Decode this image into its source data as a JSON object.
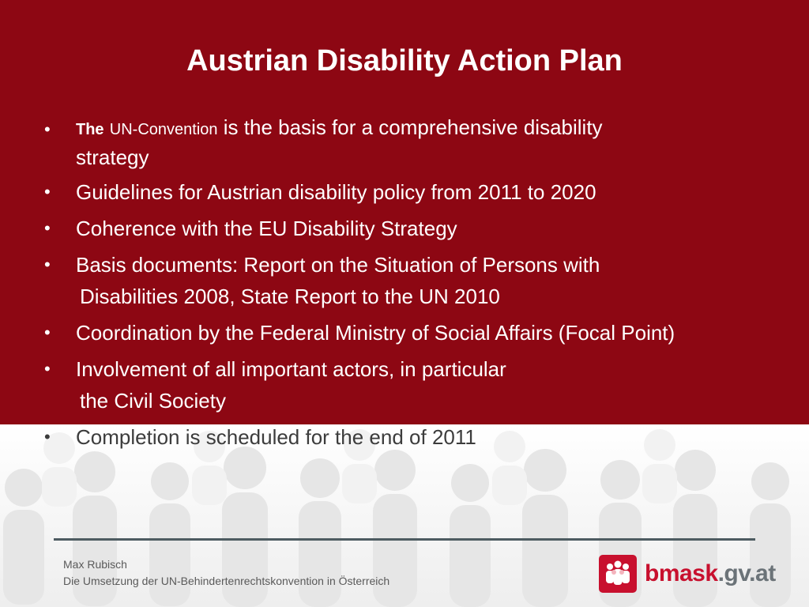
{
  "slide": {
    "title": "Austrian Disability Action Plan",
    "bullets": [
      {
        "bold": "The",
        "small": "UN-Convention",
        "text_line1": " is the basis for a comprehensive disability",
        "text_line2": "strategy"
      },
      {
        "text": "Guidelines for Austrian disability policy from 2011 to 2020"
      },
      {
        "text": "Coherence with the EU Disability Strategy"
      },
      {
        "text": "Basis documents: Report on the Situation of Persons with"
      },
      {
        "text": "Disabilities 2008,  State Report to the UN 2010"
      },
      {
        "text": "Coordination by the Federal Ministry of Social Affairs (Focal Point)"
      },
      {
        "text": "Involvement of all important actors, in particular"
      },
      {
        "text": "the Civil Society"
      },
      {
        "text": "Completion is scheduled for the end of 2011"
      }
    ],
    "bullet_char": "•"
  },
  "footer": {
    "author": "Max Rubisch",
    "subtitle": "Die Umsetzung der UN-Behindertenrechtskonvention in Österreich"
  },
  "logo": {
    "name": "bmask",
    "tld": ".gv.at",
    "icon": "people-group-icon"
  },
  "colors": {
    "primary_red": "#8d0713",
    "logo_red": "#c8102e",
    "divider": "#4d5b61"
  }
}
